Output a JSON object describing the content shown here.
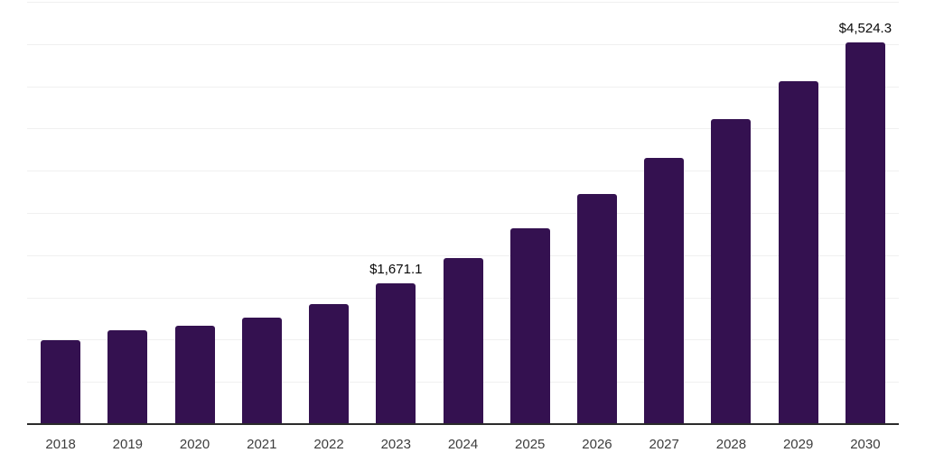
{
  "chart_data": {
    "type": "bar",
    "title": "",
    "xlabel": "",
    "ylabel": "",
    "categories": [
      "2018",
      "2019",
      "2020",
      "2021",
      "2022",
      "2023",
      "2024",
      "2025",
      "2026",
      "2027",
      "2028",
      "2029",
      "2030"
    ],
    "values": [
      995,
      1110,
      1160,
      1260,
      1420,
      1671.1,
      1965,
      2320,
      2720,
      3150,
      3610,
      4060,
      4524.3
    ],
    "data_labels": {
      "2023": "$1,671.1",
      "2030": "$4,524.3"
    },
    "ylim": [
      0,
      5000
    ],
    "gridline_step": 500,
    "grid": true,
    "legend_position": "none",
    "colors": {
      "bar": "#341150",
      "axis_line": "#2b2b2b",
      "gridline": "#f0f0f0",
      "tick_label": "#3d3d3d",
      "data_label": "#0a0a0a",
      "background": "#ffffff"
    }
  }
}
